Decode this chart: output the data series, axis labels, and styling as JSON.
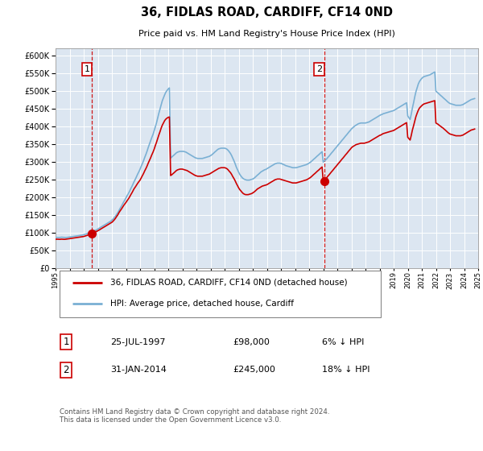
{
  "title": "36, FIDLAS ROAD, CARDIFF, CF14 0ND",
  "subtitle": "Price paid vs. HM Land Registry's House Price Index (HPI)",
  "background_color": "#dce6f1",
  "plot_bg_color": "#dce6f1",
  "hpi_color": "#7ab0d4",
  "price_color": "#cc0000",
  "ylim": [
    0,
    620000
  ],
  "yticks": [
    0,
    50000,
    100000,
    150000,
    200000,
    250000,
    300000,
    350000,
    400000,
    450000,
    500000,
    550000,
    600000
  ],
  "legend_label_red": "36, FIDLAS ROAD, CARDIFF, CF14 0ND (detached house)",
  "legend_label_blue": "HPI: Average price, detached house, Cardiff",
  "purchase1_date": 1997.57,
  "purchase1_price": 98000,
  "purchase2_date": 2014.08,
  "purchase2_price": 245000,
  "footer": "Contains HM Land Registry data © Crown copyright and database right 2024.\nThis data is licensed under the Open Government Licence v3.0.",
  "table_entries": [
    {
      "label": "1",
      "date": "25-JUL-1997",
      "price": "£98,000",
      "note": "6% ↓ HPI"
    },
    {
      "label": "2",
      "date": "31-JAN-2014",
      "price": "£245,000",
      "note": "18% ↓ HPI"
    }
  ],
  "hpi_data_years": [
    1995.0,
    1995.08,
    1995.17,
    1995.25,
    1995.33,
    1995.42,
    1995.5,
    1995.58,
    1995.67,
    1995.75,
    1995.83,
    1995.92,
    1996.0,
    1996.08,
    1996.17,
    1996.25,
    1996.33,
    1996.42,
    1996.5,
    1996.58,
    1996.67,
    1996.75,
    1996.83,
    1996.92,
    1997.0,
    1997.08,
    1997.17,
    1997.25,
    1997.33,
    1997.42,
    1997.5,
    1997.58,
    1997.67,
    1997.75,
    1997.83,
    1997.92,
    1998.0,
    1998.08,
    1998.17,
    1998.25,
    1998.33,
    1998.42,
    1998.5,
    1998.58,
    1998.67,
    1998.75,
    1998.83,
    1998.92,
    1999.0,
    1999.08,
    1999.17,
    1999.25,
    1999.33,
    1999.42,
    1999.5,
    1999.58,
    1999.67,
    1999.75,
    1999.83,
    1999.92,
    2000.0,
    2000.08,
    2000.17,
    2000.25,
    2000.33,
    2000.42,
    2000.5,
    2000.58,
    2000.67,
    2000.75,
    2000.83,
    2000.92,
    2001.0,
    2001.08,
    2001.17,
    2001.25,
    2001.33,
    2001.42,
    2001.5,
    2001.58,
    2001.67,
    2001.75,
    2001.83,
    2001.92,
    2002.0,
    2002.08,
    2002.17,
    2002.25,
    2002.33,
    2002.42,
    2002.5,
    2002.58,
    2002.67,
    2002.75,
    2002.83,
    2002.92,
    2003.0,
    2003.08,
    2003.17,
    2003.25,
    2003.33,
    2003.42,
    2003.5,
    2003.58,
    2003.67,
    2003.75,
    2003.83,
    2003.92,
    2004.0,
    2004.08,
    2004.17,
    2004.25,
    2004.33,
    2004.42,
    2004.5,
    2004.58,
    2004.67,
    2004.75,
    2004.83,
    2004.92,
    2005.0,
    2005.08,
    2005.17,
    2005.25,
    2005.33,
    2005.42,
    2005.5,
    2005.58,
    2005.67,
    2005.75,
    2005.83,
    2005.92,
    2006.0,
    2006.08,
    2006.17,
    2006.25,
    2006.33,
    2006.42,
    2006.5,
    2006.58,
    2006.67,
    2006.75,
    2006.83,
    2006.92,
    2007.0,
    2007.08,
    2007.17,
    2007.25,
    2007.33,
    2007.42,
    2007.5,
    2007.58,
    2007.67,
    2007.75,
    2007.83,
    2007.92,
    2008.0,
    2008.08,
    2008.17,
    2008.25,
    2008.33,
    2008.42,
    2008.5,
    2008.58,
    2008.67,
    2008.75,
    2008.83,
    2008.92,
    2009.0,
    2009.08,
    2009.17,
    2009.25,
    2009.33,
    2009.42,
    2009.5,
    2009.58,
    2009.67,
    2009.75,
    2009.83,
    2009.92,
    2010.0,
    2010.08,
    2010.17,
    2010.25,
    2010.33,
    2010.42,
    2010.5,
    2010.58,
    2010.67,
    2010.75,
    2010.83,
    2010.92,
    2011.0,
    2011.08,
    2011.17,
    2011.25,
    2011.33,
    2011.42,
    2011.5,
    2011.58,
    2011.67,
    2011.75,
    2011.83,
    2011.92,
    2012.0,
    2012.08,
    2012.17,
    2012.25,
    2012.33,
    2012.42,
    2012.5,
    2012.58,
    2012.67,
    2012.75,
    2012.83,
    2012.92,
    2013.0,
    2013.08,
    2013.17,
    2013.25,
    2013.33,
    2013.42,
    2013.5,
    2013.58,
    2013.67,
    2013.75,
    2013.83,
    2013.92,
    2014.0,
    2014.08,
    2014.17,
    2014.25,
    2014.33,
    2014.42,
    2014.5,
    2014.58,
    2014.67,
    2014.75,
    2014.83,
    2014.92,
    2015.0,
    2015.08,
    2015.17,
    2015.25,
    2015.33,
    2015.42,
    2015.5,
    2015.58,
    2015.67,
    2015.75,
    2015.83,
    2015.92,
    2016.0,
    2016.08,
    2016.17,
    2016.25,
    2016.33,
    2016.42,
    2016.5,
    2016.58,
    2016.67,
    2016.75,
    2016.83,
    2016.92,
    2017.0,
    2017.08,
    2017.17,
    2017.25,
    2017.33,
    2017.42,
    2017.5,
    2017.58,
    2017.67,
    2017.75,
    2017.83,
    2017.92,
    2018.0,
    2018.08,
    2018.17,
    2018.25,
    2018.33,
    2018.42,
    2018.5,
    2018.58,
    2018.67,
    2018.75,
    2018.83,
    2018.92,
    2019.0,
    2019.08,
    2019.17,
    2019.25,
    2019.33,
    2019.42,
    2019.5,
    2019.58,
    2019.67,
    2019.75,
    2019.83,
    2019.92,
    2020.0,
    2020.08,
    2020.17,
    2020.25,
    2020.33,
    2020.42,
    2020.5,
    2020.58,
    2020.67,
    2020.75,
    2020.83,
    2020.92,
    2021.0,
    2021.08,
    2021.17,
    2021.25,
    2021.33,
    2021.42,
    2021.5,
    2021.58,
    2021.67,
    2021.75,
    2021.83,
    2021.92,
    2022.0,
    2022.08,
    2022.17,
    2022.25,
    2022.33,
    2022.42,
    2022.5,
    2022.58,
    2022.67,
    2022.75,
    2022.83,
    2022.92,
    2023.0,
    2023.08,
    2023.17,
    2023.25,
    2023.33,
    2023.42,
    2023.5,
    2023.58,
    2023.67,
    2023.75,
    2023.83,
    2023.92,
    2024.0,
    2024.08,
    2024.17,
    2024.25,
    2024.33,
    2024.42,
    2024.5,
    2024.58,
    2024.67,
    2024.75
  ],
  "hpi_data_values": [
    87000,
    87500,
    87200,
    87000,
    87500,
    88000,
    87800,
    87500,
    87200,
    87000,
    87500,
    88000,
    88500,
    89000,
    89500,
    90000,
    90500,
    91000,
    91500,
    92000,
    92500,
    93000,
    93500,
    94000,
    95000,
    96000,
    97000,
    98000,
    99000,
    100000,
    101500,
    103000,
    104500,
    106000,
    107500,
    109000,
    111000,
    113000,
    115000,
    117000,
    119000,
    121000,
    123000,
    125000,
    127000,
    129000,
    131000,
    133000,
    136000,
    139000,
    143000,
    147000,
    152000,
    157000,
    163000,
    169000,
    175000,
    181000,
    187000,
    193000,
    199000,
    205000,
    211000,
    217000,
    224000,
    231000,
    238000,
    245000,
    252000,
    259000,
    266000,
    273000,
    280000,
    288000,
    296000,
    304000,
    313000,
    322000,
    331000,
    341000,
    351000,
    360000,
    369000,
    378000,
    388000,
    399000,
    411000,
    424000,
    437000,
    450000,
    462000,
    473000,
    482000,
    490000,
    497000,
    502000,
    506000,
    509000,
    311000,
    314000,
    317000,
    320000,
    323000,
    326000,
    328000,
    329000,
    330000,
    330000,
    330000,
    330000,
    329000,
    328000,
    326000,
    324000,
    322000,
    320000,
    318000,
    316000,
    314000,
    312000,
    311000,
    310000,
    310000,
    310000,
    310000,
    310000,
    311000,
    312000,
    313000,
    314000,
    315000,
    316000,
    318000,
    320000,
    323000,
    326000,
    329000,
    332000,
    335000,
    337000,
    338000,
    339000,
    339000,
    339000,
    339000,
    338000,
    336000,
    333000,
    329000,
    324000,
    318000,
    311000,
    303000,
    295000,
    286000,
    278000,
    271000,
    265000,
    260000,
    256000,
    253000,
    251000,
    250000,
    249000,
    249000,
    249000,
    250000,
    251000,
    252000,
    254000,
    257000,
    260000,
    263000,
    266000,
    269000,
    272000,
    274000,
    276000,
    278000,
    279000,
    281000,
    283000,
    285000,
    287000,
    289000,
    291000,
    293000,
    295000,
    296000,
    297000,
    297000,
    297000,
    296000,
    295000,
    293000,
    292000,
    290000,
    289000,
    288000,
    287000,
    286000,
    285000,
    284000,
    284000,
    284000,
    284000,
    285000,
    286000,
    287000,
    288000,
    289000,
    290000,
    291000,
    292000,
    293000,
    295000,
    297000,
    299000,
    302000,
    305000,
    308000,
    311000,
    314000,
    317000,
    320000,
    323000,
    326000,
    329000,
    300000,
    303000,
    306000,
    309000,
    313000,
    317000,
    321000,
    325000,
    329000,
    333000,
    337000,
    341000,
    345000,
    349000,
    353000,
    357000,
    361000,
    365000,
    369000,
    373000,
    377000,
    381000,
    385000,
    389000,
    393000,
    396000,
    399000,
    402000,
    404000,
    406000,
    408000,
    409000,
    410000,
    410000,
    410000,
    410000,
    410000,
    411000,
    412000,
    413000,
    415000,
    417000,
    419000,
    421000,
    423000,
    425000,
    427000,
    429000,
    431000,
    433000,
    434000,
    436000,
    437000,
    438000,
    439000,
    440000,
    441000,
    442000,
    443000,
    444000,
    445000,
    447000,
    449000,
    451000,
    453000,
    455000,
    457000,
    459000,
    461000,
    463000,
    465000,
    467000,
    430000,
    425000,
    420000,
    435000,
    452000,
    468000,
    484000,
    498000,
    510000,
    520000,
    527000,
    532000,
    536000,
    539000,
    541000,
    542000,
    543000,
    544000,
    545000,
    546000,
    548000,
    550000,
    552000,
    554000,
    500000,
    497000,
    494000,
    491000,
    488000,
    485000,
    482000,
    479000,
    476000,
    473000,
    470000,
    467000,
    465000,
    464000,
    463000,
    462000,
    461000,
    460000,
    460000,
    460000,
    460000,
    460000,
    461000,
    462000,
    464000,
    466000,
    468000,
    470000,
    472000,
    474000,
    476000,
    477000,
    478000,
    479000
  ],
  "price_data_years": [
    1995.0,
    1995.08,
    1995.17,
    1995.25,
    1995.33,
    1995.42,
    1995.5,
    1995.58,
    1995.67,
    1995.75,
    1995.83,
    1995.92,
    1996.0,
    1996.08,
    1996.17,
    1996.25,
    1996.33,
    1996.42,
    1996.5,
    1996.58,
    1996.67,
    1996.75,
    1996.83,
    1996.92,
    1997.0,
    1997.08,
    1997.17,
    1997.25,
    1997.33,
    1997.42,
    1997.5,
    1997.58,
    1997.67,
    1997.75,
    1997.83,
    1997.92,
    1998.0,
    1998.08,
    1998.17,
    1998.25,
    1998.33,
    1998.42,
    1998.5,
    1998.58,
    1998.67,
    1998.75,
    1998.83,
    1998.92,
    1999.0,
    1999.08,
    1999.17,
    1999.25,
    1999.33,
    1999.42,
    1999.5,
    1999.58,
    1999.67,
    1999.75,
    1999.83,
    1999.92,
    2000.0,
    2000.08,
    2000.17,
    2000.25,
    2000.33,
    2000.42,
    2000.5,
    2000.58,
    2000.67,
    2000.75,
    2000.83,
    2000.92,
    2001.0,
    2001.08,
    2001.17,
    2001.25,
    2001.33,
    2001.42,
    2001.5,
    2001.58,
    2001.67,
    2001.75,
    2001.83,
    2001.92,
    2002.0,
    2002.08,
    2002.17,
    2002.25,
    2002.33,
    2002.42,
    2002.5,
    2002.58,
    2002.67,
    2002.75,
    2002.83,
    2002.92,
    2003.0,
    2003.08,
    2003.17,
    2003.25,
    2003.33,
    2003.42,
    2003.5,
    2003.58,
    2003.67,
    2003.75,
    2003.83,
    2003.92,
    2004.0,
    2004.08,
    2004.17,
    2004.25,
    2004.33,
    2004.42,
    2004.5,
    2004.58,
    2004.67,
    2004.75,
    2004.83,
    2004.92,
    2005.0,
    2005.08,
    2005.17,
    2005.25,
    2005.33,
    2005.42,
    2005.5,
    2005.58,
    2005.67,
    2005.75,
    2005.83,
    2005.92,
    2006.0,
    2006.08,
    2006.17,
    2006.25,
    2006.33,
    2006.42,
    2006.5,
    2006.58,
    2006.67,
    2006.75,
    2006.83,
    2006.92,
    2007.0,
    2007.08,
    2007.17,
    2007.25,
    2007.33,
    2007.42,
    2007.5,
    2007.58,
    2007.67,
    2007.75,
    2007.83,
    2007.92,
    2008.0,
    2008.08,
    2008.17,
    2008.25,
    2008.33,
    2008.42,
    2008.5,
    2008.58,
    2008.67,
    2008.75,
    2008.83,
    2008.92,
    2009.0,
    2009.08,
    2009.17,
    2009.25,
    2009.33,
    2009.42,
    2009.5,
    2009.58,
    2009.67,
    2009.75,
    2009.83,
    2009.92,
    2010.0,
    2010.08,
    2010.17,
    2010.25,
    2010.33,
    2010.42,
    2010.5,
    2010.58,
    2010.67,
    2010.75,
    2010.83,
    2010.92,
    2011.0,
    2011.08,
    2011.17,
    2011.25,
    2011.33,
    2011.42,
    2011.5,
    2011.58,
    2011.67,
    2011.75,
    2011.83,
    2011.92,
    2012.0,
    2012.08,
    2012.17,
    2012.25,
    2012.33,
    2012.42,
    2012.5,
    2012.58,
    2012.67,
    2012.75,
    2012.83,
    2012.92,
    2013.0,
    2013.08,
    2013.17,
    2013.25,
    2013.33,
    2013.42,
    2013.5,
    2013.58,
    2013.67,
    2013.75,
    2013.83,
    2013.92,
    2014.0,
    2014.08,
    2014.17,
    2014.25,
    2014.33,
    2014.42,
    2014.5,
    2014.58,
    2014.67,
    2014.75,
    2014.83,
    2014.92,
    2015.0,
    2015.08,
    2015.17,
    2015.25,
    2015.33,
    2015.42,
    2015.5,
    2015.58,
    2015.67,
    2015.75,
    2015.83,
    2015.92,
    2016.0,
    2016.08,
    2016.17,
    2016.25,
    2016.33,
    2016.42,
    2016.5,
    2016.58,
    2016.67,
    2016.75,
    2016.83,
    2016.92,
    2017.0,
    2017.08,
    2017.17,
    2017.25,
    2017.33,
    2017.42,
    2017.5,
    2017.58,
    2017.67,
    2017.75,
    2017.83,
    2017.92,
    2018.0,
    2018.08,
    2018.17,
    2018.25,
    2018.33,
    2018.42,
    2018.5,
    2018.58,
    2018.67,
    2018.75,
    2018.83,
    2018.92,
    2019.0,
    2019.08,
    2019.17,
    2019.25,
    2019.33,
    2019.42,
    2019.5,
    2019.58,
    2019.67,
    2019.75,
    2019.83,
    2019.92,
    2020.0,
    2020.08,
    2020.17,
    2020.25,
    2020.33,
    2020.42,
    2020.5,
    2020.58,
    2020.67,
    2020.75,
    2020.83,
    2020.92,
    2021.0,
    2021.08,
    2021.17,
    2021.25,
    2021.33,
    2021.42,
    2021.5,
    2021.58,
    2021.67,
    2021.75,
    2021.83,
    2021.92,
    2022.0,
    2022.08,
    2022.17,
    2022.25,
    2022.33,
    2022.42,
    2022.5,
    2022.58,
    2022.67,
    2022.75,
    2022.83,
    2022.92,
    2023.0,
    2023.08,
    2023.17,
    2023.25,
    2023.33,
    2023.42,
    2023.5,
    2023.58,
    2023.67,
    2023.75,
    2023.83,
    2023.92,
    2024.0,
    2024.08,
    2024.17,
    2024.25,
    2024.33,
    2024.42,
    2024.5,
    2024.58,
    2024.67,
    2024.75
  ],
  "price_data_values": [
    82000,
    82500,
    82200,
    82000,
    82000,
    82500,
    82200,
    82000,
    82000,
    82500,
    83000,
    83500,
    84000,
    84500,
    85000,
    85500,
    86000,
    86500,
    87000,
    87500,
    88000,
    88500,
    89000,
    89500,
    90000,
    91000,
    92000,
    93000,
    94000,
    95500,
    97000,
    98500,
    100000,
    101500,
    103000,
    104500,
    106000,
    108000,
    110000,
    112000,
    114000,
    116000,
    118000,
    120000,
    122000,
    124000,
    126000,
    128000,
    130000,
    133000,
    137000,
    141000,
    146000,
    151000,
    157000,
    162000,
    167000,
    172000,
    177000,
    182000,
    186000,
    191000,
    196000,
    201000,
    207000,
    213000,
    219000,
    225000,
    230000,
    235000,
    240000,
    245000,
    249000,
    255000,
    262000,
    268000,
    275000,
    282000,
    289000,
    297000,
    305000,
    312000,
    320000,
    328000,
    336000,
    346000,
    356000,
    366000,
    376000,
    386000,
    396000,
    404000,
    411000,
    417000,
    421000,
    424000,
    426000,
    427000,
    262000,
    264000,
    267000,
    270000,
    273000,
    276000,
    278000,
    279000,
    280000,
    280000,
    280000,
    279000,
    278000,
    277000,
    276000,
    274000,
    272000,
    270000,
    268000,
    266000,
    264000,
    262000,
    261000,
    260000,
    260000,
    260000,
    260000,
    260000,
    261000,
    262000,
    263000,
    264000,
    265000,
    266000,
    268000,
    270000,
    272000,
    274000,
    276000,
    278000,
    280000,
    282000,
    283000,
    284000,
    284000,
    284000,
    284000,
    283000,
    281000,
    278000,
    274000,
    270000,
    265000,
    259000,
    253000,
    247000,
    240000,
    233000,
    227000,
    222000,
    218000,
    214000,
    211000,
    209000,
    208000,
    208000,
    208000,
    209000,
    210000,
    211000,
    213000,
    215000,
    218000,
    221000,
    224000,
    226000,
    228000,
    230000,
    232000,
    233000,
    234000,
    235000,
    236000,
    238000,
    240000,
    242000,
    244000,
    246000,
    248000,
    250000,
    251000,
    252000,
    252000,
    252000,
    251000,
    250000,
    249000,
    248000,
    247000,
    246000,
    245000,
    244000,
    243000,
    242000,
    241000,
    241000,
    241000,
    241000,
    242000,
    243000,
    244000,
    245000,
    246000,
    247000,
    248000,
    249000,
    250000,
    252000,
    254000,
    256000,
    259000,
    262000,
    265000,
    268000,
    271000,
    274000,
    277000,
    280000,
    283000,
    286000,
    247000,
    250000,
    253000,
    256000,
    260000,
    264000,
    268000,
    272000,
    276000,
    280000,
    284000,
    288000,
    292000,
    296000,
    300000,
    304000,
    308000,
    312000,
    316000,
    320000,
    324000,
    328000,
    332000,
    336000,
    340000,
    343000,
    345000,
    347000,
    349000,
    350000,
    351000,
    352000,
    353000,
    353000,
    353000,
    353000,
    354000,
    355000,
    356000,
    357000,
    359000,
    361000,
    363000,
    365000,
    367000,
    369000,
    371000,
    373000,
    375000,
    376000,
    378000,
    380000,
    381000,
    382000,
    383000,
    384000,
    385000,
    386000,
    387000,
    388000,
    389000,
    391000,
    393000,
    395000,
    397000,
    399000,
    401000,
    403000,
    405000,
    407000,
    409000,
    411000,
    370000,
    366000,
    362000,
    375000,
    390000,
    403000,
    416000,
    428000,
    438000,
    446000,
    452000,
    456000,
    459000,
    462000,
    464000,
    465000,
    466000,
    467000,
    468000,
    469000,
    470000,
    471000,
    472000,
    473000,
    410000,
    408000,
    406000,
    403000,
    401000,
    398000,
    396000,
    393000,
    390000,
    387000,
    384000,
    381000,
    379000,
    378000,
    377000,
    376000,
    375000,
    374000,
    374000,
    374000,
    374000,
    374000,
    375000,
    376000,
    378000,
    380000,
    382000,
    384000,
    386000,
    388000,
    390000,
    391000,
    392000,
    393000
  ]
}
